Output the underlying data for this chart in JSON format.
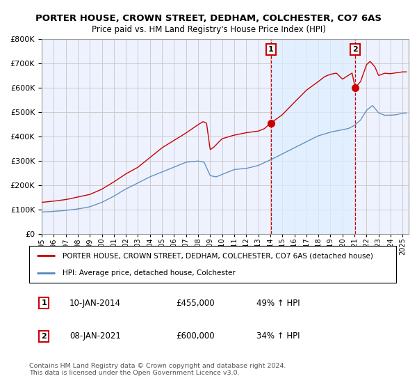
{
  "title": "PORTER HOUSE, CROWN STREET, DEDHAM, COLCHESTER, CO7 6AS",
  "subtitle": "Price paid vs. HM Land Registry's House Price Index (HPI)",
  "ytick_values": [
    0,
    100000,
    200000,
    300000,
    400000,
    500000,
    600000,
    700000,
    800000
  ],
  "ylim": [
    0,
    800000
  ],
  "xlim_start": 1995.0,
  "xlim_end": 2025.5,
  "sale1_x": 2014.04,
  "sale1_y": 455000,
  "sale2_x": 2021.04,
  "sale2_y": 600000,
  "sale1_date": "10-JAN-2014",
  "sale1_price": "£455,000",
  "sale1_hpi": "49% ↑ HPI",
  "sale2_date": "08-JAN-2021",
  "sale2_price": "£600,000",
  "sale2_hpi": "34% ↑ HPI",
  "legend_red_label": "PORTER HOUSE, CROWN STREET, DEDHAM, COLCHESTER, CO7 6AS (detached house)",
  "legend_blue_label": "HPI: Average price, detached house, Colchester",
  "footer": "Contains HM Land Registry data © Crown copyright and database right 2024.\nThis data is licensed under the Open Government Licence v3.0.",
  "red_color": "#cc0000",
  "blue_color": "#5588bb",
  "shade_color": "#ddeeff",
  "bg_color": "#eef2ff",
  "grid_color": "#cccccc",
  "title_fontsize": 9.5,
  "subtitle_fontsize": 8.5
}
